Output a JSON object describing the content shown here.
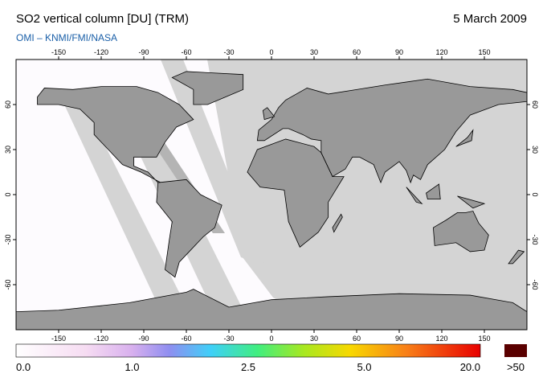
{
  "header": {
    "title": "SO2 vertical column [DU] (TRM)",
    "date": "5 March 2009",
    "source": "OMI – KNMI/FMI/NASA"
  },
  "map": {
    "lon_ticks": [
      -150,
      -120,
      -90,
      -60,
      -30,
      0,
      30,
      60,
      90,
      120,
      150
    ],
    "lat_ticks": [
      60,
      30,
      0,
      -30,
      -60
    ]
  },
  "colorbar": {
    "labels": [
      "0.0",
      "1.0",
      "2.5",
      "5.0",
      "20.0"
    ],
    "overflow": ">50"
  }
}
